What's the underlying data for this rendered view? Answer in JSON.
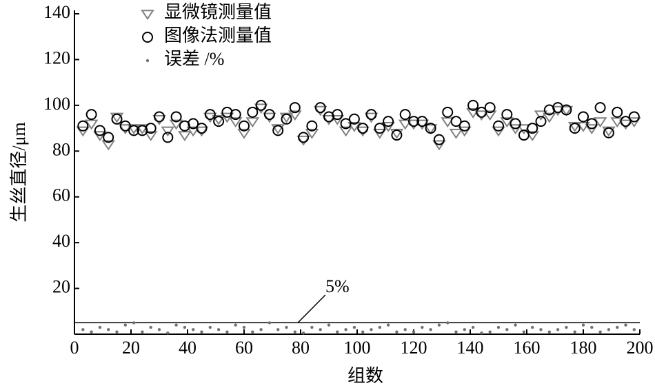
{
  "chart_data": {
    "type": "scatter",
    "xlabel": "组数",
    "ylabel": "生丝直径/μm",
    "xlim": [
      0,
      200
    ],
    "ylim": [
      0,
      140
    ],
    "xticks": [
      0,
      20,
      40,
      60,
      80,
      100,
      120,
      140,
      160,
      180,
      200
    ],
    "yticks": [
      20,
      40,
      60,
      80,
      100,
      120,
      140
    ],
    "threshold": 5,
    "annotation": "5%",
    "x": [
      3,
      6,
      9,
      12,
      15,
      18,
      21,
      24,
      27,
      30,
      33,
      36,
      39,
      42,
      45,
      48,
      51,
      54,
      57,
      60,
      63,
      66,
      69,
      72,
      75,
      78,
      81,
      84,
      87,
      90,
      93,
      96,
      99,
      102,
      105,
      108,
      111,
      114,
      117,
      120,
      123,
      126,
      129,
      132,
      135,
      138,
      141,
      144,
      147,
      150,
      153,
      156,
      159,
      162,
      165,
      168,
      171,
      174,
      177,
      180,
      183,
      186,
      189,
      192,
      195,
      198
    ],
    "series": [
      {
        "name": "显微镜测量值",
        "marker": "triangle",
        "color": "#808080",
        "values": [
          89,
          92,
          87,
          83,
          95,
          90,
          90,
          90,
          87,
          94,
          89,
          92,
          87,
          89,
          89,
          95,
          94,
          95,
          93,
          88,
          93,
          99,
          95,
          90,
          95,
          96,
          85,
          88,
          98,
          94,
          94,
          89,
          91,
          89,
          95,
          88,
          91,
          88,
          92,
          92,
          92,
          90,
          83,
          93,
          88,
          89,
          97,
          96,
          96,
          89,
          93,
          90,
          90,
          87,
          96,
          95,
          98,
          98,
          91,
          91,
          90,
          93,
          89,
          93,
          92,
          93
        ]
      },
      {
        "name": "图像法测量值",
        "marker": "circle",
        "color": "#000000",
        "values": [
          91,
          96,
          89,
          86,
          94,
          91,
          89,
          89,
          90,
          95,
          86,
          95,
          91,
          92,
          90,
          96,
          93,
          97,
          96,
          91,
          97,
          100,
          96,
          89,
          94,
          99,
          86,
          91,
          99,
          95,
          96,
          92,
          94,
          90,
          96,
          90,
          93,
          87,
          96,
          93,
          93,
          90,
          85,
          97,
          93,
          91,
          100,
          97,
          99,
          91,
          96,
          92,
          87,
          90,
          93,
          98,
          99,
          98,
          90,
          95,
          92,
          99,
          88,
          97,
          93,
          95
        ]
      },
      {
        "name": "误差 /%",
        "marker": "dot",
        "color": "#707070",
        "values": [
          2,
          1,
          3,
          2,
          1,
          4,
          5,
          1,
          3,
          2,
          0.5,
          4,
          3,
          2,
          1,
          3,
          2,
          1,
          4,
          3,
          1,
          2,
          5,
          2,
          3,
          1,
          0.5,
          3,
          2,
          4,
          1,
          2,
          3,
          1,
          2,
          3,
          4,
          1,
          2,
          1,
          3,
          2,
          4,
          5,
          1,
          2,
          3,
          0.5,
          1,
          3,
          2,
          4,
          1,
          3,
          2,
          1,
          2,
          3,
          1,
          4,
          3,
          1,
          2,
          3,
          4,
          2
        ]
      }
    ]
  }
}
